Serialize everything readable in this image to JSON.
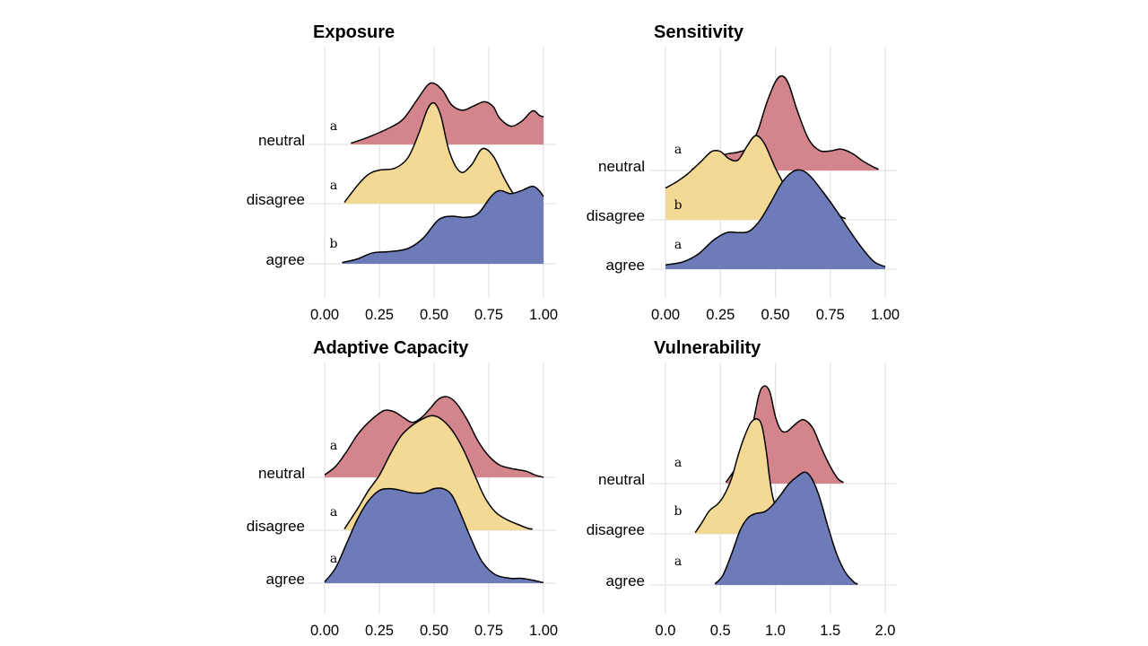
{
  "colors": {
    "neutral": "#d4858c",
    "disagree": "#f4d994",
    "agree": "#6e7bb9"
  },
  "chart_data": [
    {
      "type": "ridgeline",
      "title": "Exposure",
      "categories": [
        "neutral",
        "disagree",
        "agree"
      ],
      "xticks": [
        "0.00",
        "0.25",
        "0.50",
        "0.75",
        "1.00"
      ],
      "xlim": [
        0,
        1
      ],
      "letters": {
        "neutral": "a",
        "disagree": "a",
        "agree": "b"
      },
      "series": [
        {
          "name": "neutral",
          "range": [
            0.12,
            1.0
          ],
          "points": [
            [
              0.12,
              0.02
            ],
            [
              0.2,
              0.12
            ],
            [
              0.3,
              0.28
            ],
            [
              0.36,
              0.42
            ],
            [
              0.42,
              0.72
            ],
            [
              0.47,
              0.97
            ],
            [
              0.5,
              1.0
            ],
            [
              0.54,
              0.88
            ],
            [
              0.58,
              0.65
            ],
            [
              0.63,
              0.56
            ],
            [
              0.68,
              0.63
            ],
            [
              0.73,
              0.7
            ],
            [
              0.77,
              0.62
            ],
            [
              0.8,
              0.43
            ],
            [
              0.85,
              0.3
            ],
            [
              0.9,
              0.38
            ],
            [
              0.95,
              0.55
            ],
            [
              0.98,
              0.48
            ],
            [
              1.0,
              0.45
            ]
          ]
        },
        {
          "name": "disagree",
          "range": [
            0.09,
            0.9
          ],
          "points": [
            [
              0.09,
              0.02
            ],
            [
              0.15,
              0.3
            ],
            [
              0.2,
              0.48
            ],
            [
              0.25,
              0.55
            ],
            [
              0.32,
              0.58
            ],
            [
              0.38,
              0.75
            ],
            [
              0.43,
              1.15
            ],
            [
              0.47,
              1.55
            ],
            [
              0.5,
              1.65
            ],
            [
              0.53,
              1.45
            ],
            [
              0.57,
              0.85
            ],
            [
              0.62,
              0.52
            ],
            [
              0.67,
              0.63
            ],
            [
              0.72,
              0.9
            ],
            [
              0.77,
              0.78
            ],
            [
              0.82,
              0.42
            ],
            [
              0.87,
              0.12
            ],
            [
              0.9,
              0.03
            ]
          ]
        },
        {
          "name": "agree",
          "range": [
            0.08,
            1.0
          ],
          "points": [
            [
              0.08,
              0.02
            ],
            [
              0.15,
              0.08
            ],
            [
              0.22,
              0.18
            ],
            [
              0.3,
              0.2
            ],
            [
              0.38,
              0.25
            ],
            [
              0.45,
              0.42
            ],
            [
              0.52,
              0.72
            ],
            [
              0.58,
              0.78
            ],
            [
              0.64,
              0.76
            ],
            [
              0.7,
              0.82
            ],
            [
              0.76,
              1.1
            ],
            [
              0.8,
              1.2
            ],
            [
              0.85,
              1.15
            ],
            [
              0.9,
              1.2
            ],
            [
              0.95,
              1.27
            ],
            [
              0.98,
              1.2
            ],
            [
              1.0,
              1.1
            ]
          ]
        }
      ]
    },
    {
      "type": "ridgeline",
      "title": "Sensitivity",
      "categories": [
        "neutral",
        "disagree",
        "agree"
      ],
      "xticks": [
        "0.00",
        "0.25",
        "0.50",
        "0.75",
        "1.00"
      ],
      "xlim": [
        0,
        1
      ],
      "letters": {
        "neutral": "a",
        "disagree": "b",
        "agree": "a"
      },
      "series": [
        {
          "name": "neutral",
          "range": [
            0.12,
            0.97
          ],
          "points": [
            [
              0.12,
              0.02
            ],
            [
              0.18,
              0.1
            ],
            [
              0.23,
              0.2
            ],
            [
              0.28,
              0.27
            ],
            [
              0.33,
              0.3
            ],
            [
              0.38,
              0.38
            ],
            [
              0.42,
              0.65
            ],
            [
              0.46,
              1.1
            ],
            [
              0.5,
              1.45
            ],
            [
              0.53,
              1.55
            ],
            [
              0.56,
              1.42
            ],
            [
              0.6,
              0.98
            ],
            [
              0.65,
              0.52
            ],
            [
              0.7,
              0.33
            ],
            [
              0.75,
              0.32
            ],
            [
              0.8,
              0.35
            ],
            [
              0.85,
              0.28
            ],
            [
              0.9,
              0.15
            ],
            [
              0.95,
              0.05
            ],
            [
              0.97,
              0.02
            ]
          ]
        },
        {
          "name": "disagree",
          "range": [
            0.0,
            0.82
          ],
          "points": [
            [
              0.0,
              0.52
            ],
            [
              0.05,
              0.62
            ],
            [
              0.1,
              0.75
            ],
            [
              0.16,
              0.95
            ],
            [
              0.21,
              1.12
            ],
            [
              0.25,
              1.12
            ],
            [
              0.29,
              1.0
            ],
            [
              0.33,
              0.98
            ],
            [
              0.37,
              1.2
            ],
            [
              0.41,
              1.38
            ],
            [
              0.45,
              1.25
            ],
            [
              0.5,
              0.85
            ],
            [
              0.55,
              0.52
            ],
            [
              0.6,
              0.32
            ],
            [
              0.65,
              0.3
            ],
            [
              0.7,
              0.3
            ],
            [
              0.75,
              0.18
            ],
            [
              0.8,
              0.05
            ],
            [
              0.82,
              0.02
            ]
          ]
        },
        {
          "name": "agree",
          "range": [
            0.0,
            1.0
          ],
          "points": [
            [
              0.0,
              0.07
            ],
            [
              0.08,
              0.12
            ],
            [
              0.15,
              0.25
            ],
            [
              0.22,
              0.48
            ],
            [
              0.28,
              0.6
            ],
            [
              0.33,
              0.6
            ],
            [
              0.38,
              0.62
            ],
            [
              0.43,
              0.8
            ],
            [
              0.48,
              1.1
            ],
            [
              0.53,
              1.42
            ],
            [
              0.58,
              1.6
            ],
            [
              0.62,
              1.62
            ],
            [
              0.66,
              1.52
            ],
            [
              0.72,
              1.25
            ],
            [
              0.78,
              0.95
            ],
            [
              0.84,
              0.62
            ],
            [
              0.9,
              0.32
            ],
            [
              0.95,
              0.12
            ],
            [
              1.0,
              0.04
            ]
          ]
        }
      ]
    },
    {
      "type": "ridgeline",
      "title": "Adaptive Capacity",
      "categories": [
        "neutral",
        "disagree",
        "agree"
      ],
      "xticks": [
        "0.00",
        "0.25",
        "0.50",
        "0.75",
        "1.00"
      ],
      "xlim": [
        0,
        1
      ],
      "letters": {
        "neutral": "a",
        "disagree": "a",
        "agree": "a"
      },
      "series": [
        {
          "name": "neutral",
          "range": [
            0.0,
            1.0
          ],
          "points": [
            [
              0.0,
              0.04
            ],
            [
              0.05,
              0.18
            ],
            [
              0.1,
              0.42
            ],
            [
              0.15,
              0.7
            ],
            [
              0.2,
              0.9
            ],
            [
              0.25,
              1.05
            ],
            [
              0.28,
              1.1
            ],
            [
              0.32,
              1.07
            ],
            [
              0.36,
              0.98
            ],
            [
              0.4,
              0.9
            ],
            [
              0.44,
              0.97
            ],
            [
              0.48,
              1.12
            ],
            [
              0.52,
              1.28
            ],
            [
              0.56,
              1.32
            ],
            [
              0.6,
              1.22
            ],
            [
              0.65,
              0.95
            ],
            [
              0.7,
              0.6
            ],
            [
              0.75,
              0.35
            ],
            [
              0.8,
              0.2
            ],
            [
              0.86,
              0.14
            ],
            [
              0.92,
              0.1
            ],
            [
              0.96,
              0.04
            ],
            [
              1.0,
              0.0
            ]
          ]
        },
        {
          "name": "disagree",
          "range": [
            0.09,
            0.95
          ],
          "points": [
            [
              0.09,
              0.02
            ],
            [
              0.15,
              0.35
            ],
            [
              0.2,
              0.65
            ],
            [
              0.25,
              0.9
            ],
            [
              0.3,
              1.25
            ],
            [
              0.35,
              1.55
            ],
            [
              0.4,
              1.72
            ],
            [
              0.45,
              1.83
            ],
            [
              0.49,
              1.88
            ],
            [
              0.53,
              1.83
            ],
            [
              0.58,
              1.65
            ],
            [
              0.63,
              1.35
            ],
            [
              0.68,
              0.95
            ],
            [
              0.73,
              0.55
            ],
            [
              0.78,
              0.3
            ],
            [
              0.83,
              0.18
            ],
            [
              0.88,
              0.1
            ],
            [
              0.93,
              0.03
            ],
            [
              0.95,
              0.02
            ]
          ]
        },
        {
          "name": "agree",
          "range": [
            0.0,
            1.0
          ],
          "points": [
            [
              0.0,
              0.02
            ],
            [
              0.05,
              0.25
            ],
            [
              0.1,
              0.65
            ],
            [
              0.15,
              1.05
            ],
            [
              0.2,
              1.35
            ],
            [
              0.25,
              1.52
            ],
            [
              0.3,
              1.55
            ],
            [
              0.35,
              1.52
            ],
            [
              0.4,
              1.48
            ],
            [
              0.45,
              1.48
            ],
            [
              0.5,
              1.55
            ],
            [
              0.54,
              1.55
            ],
            [
              0.58,
              1.45
            ],
            [
              0.62,
              1.15
            ],
            [
              0.67,
              0.72
            ],
            [
              0.72,
              0.35
            ],
            [
              0.78,
              0.14
            ],
            [
              0.85,
              0.08
            ],
            [
              0.9,
              0.08
            ],
            [
              0.95,
              0.05
            ],
            [
              1.0,
              0.01
            ]
          ]
        }
      ]
    },
    {
      "type": "ridgeline",
      "title": "Vulnerability",
      "categories": [
        "neutral",
        "disagree",
        "agree"
      ],
      "xticks": [
        "0.0",
        "0.5",
        "1.0",
        "1.5",
        "2.0"
      ],
      "xlim": [
        0,
        2
      ],
      "letters": {
        "neutral": "a",
        "disagree": "b",
        "agree": "a"
      },
      "series": [
        {
          "name": "neutral",
          "range": [
            0.55,
            1.62
          ],
          "points": [
            [
              0.55,
              0.02
            ],
            [
              0.62,
              0.2
            ],
            [
              0.7,
              0.4
            ],
            [
              0.78,
              0.85
            ],
            [
              0.85,
              1.45
            ],
            [
              0.9,
              1.6
            ],
            [
              0.95,
              1.5
            ],
            [
              1.0,
              1.1
            ],
            [
              1.05,
              0.88
            ],
            [
              1.1,
              0.85
            ],
            [
              1.15,
              0.92
            ],
            [
              1.2,
              1.0
            ],
            [
              1.25,
              1.05
            ],
            [
              1.3,
              1.0
            ],
            [
              1.35,
              0.88
            ],
            [
              1.42,
              0.58
            ],
            [
              1.5,
              0.28
            ],
            [
              1.57,
              0.08
            ],
            [
              1.62,
              0.02
            ]
          ]
        },
        {
          "name": "disagree",
          "range": [
            0.27,
            1.12
          ],
          "points": [
            [
              0.27,
              0.02
            ],
            [
              0.32,
              0.15
            ],
            [
              0.4,
              0.38
            ],
            [
              0.47,
              0.48
            ],
            [
              0.53,
              0.62
            ],
            [
              0.6,
              0.9
            ],
            [
              0.66,
              1.28
            ],
            [
              0.72,
              1.6
            ],
            [
              0.78,
              1.83
            ],
            [
              0.84,
              1.88
            ],
            [
              0.88,
              1.75
            ],
            [
              0.92,
              1.32
            ],
            [
              0.95,
              0.88
            ],
            [
              0.98,
              0.58
            ],
            [
              1.02,
              0.38
            ],
            [
              1.06,
              0.25
            ],
            [
              1.1,
              0.08
            ],
            [
              1.12,
              0.03
            ]
          ]
        },
        {
          "name": "agree",
          "range": [
            0.45,
            1.75
          ],
          "points": [
            [
              0.45,
              0.02
            ],
            [
              0.52,
              0.15
            ],
            [
              0.6,
              0.5
            ],
            [
              0.68,
              0.9
            ],
            [
              0.75,
              1.1
            ],
            [
              0.82,
              1.17
            ],
            [
              0.9,
              1.2
            ],
            [
              0.97,
              1.3
            ],
            [
              1.05,
              1.48
            ],
            [
              1.12,
              1.65
            ],
            [
              1.2,
              1.78
            ],
            [
              1.27,
              1.85
            ],
            [
              1.33,
              1.75
            ],
            [
              1.4,
              1.45
            ],
            [
              1.48,
              0.95
            ],
            [
              1.56,
              0.5
            ],
            [
              1.64,
              0.2
            ],
            [
              1.72,
              0.04
            ],
            [
              1.75,
              0.02
            ]
          ]
        }
      ]
    }
  ]
}
